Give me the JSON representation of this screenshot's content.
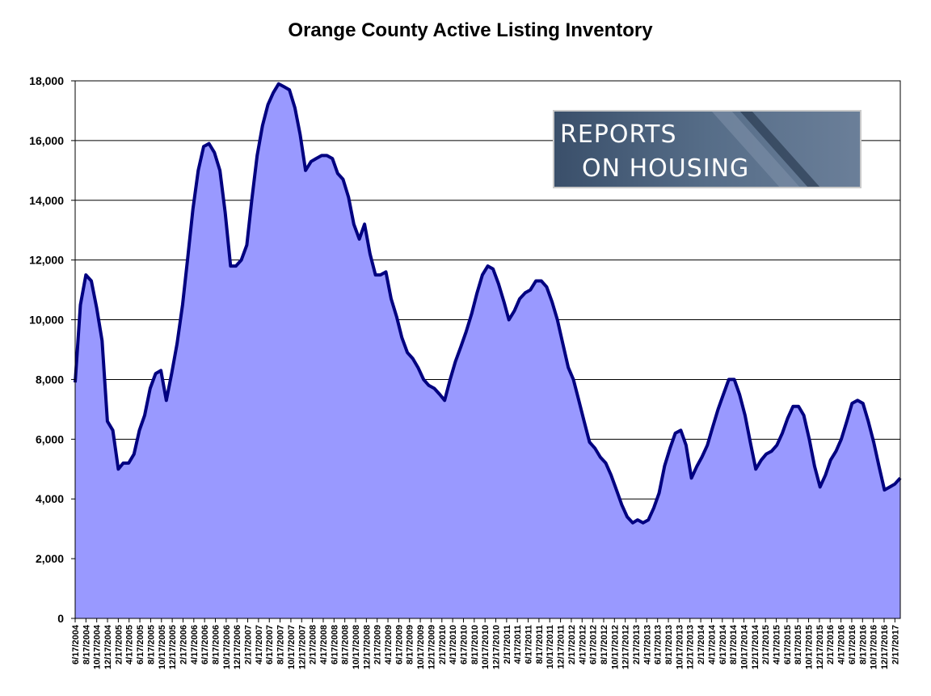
{
  "chart_data": {
    "type": "area",
    "title": "Orange County Active Listing Inventory",
    "xlabel": "",
    "ylabel": "",
    "ylim": [
      0,
      18000
    ],
    "yticks": [
      0,
      2000,
      4000,
      6000,
      8000,
      10000,
      12000,
      14000,
      16000,
      18000
    ],
    "ytick_labels": [
      "0",
      "2,000",
      "4,000",
      "6,000",
      "8,000",
      "10,000",
      "12,000",
      "14,000",
      "16,000",
      "18,000"
    ],
    "xlim": [
      "2004-06-17",
      "2017-04-17"
    ],
    "xtick_labels": [
      "6/17/2004",
      "8/17/2004",
      "10/17/2004",
      "12/17/2004",
      "2/17/2005",
      "4/17/2005",
      "6/17/2005",
      "8/17/2005",
      "10/17/2005",
      "12/17/2005",
      "2/17/2006",
      "4/17/2006",
      "6/17/2006",
      "8/17/2006",
      "10/17/2006",
      "12/17/2006",
      "2/17/2007",
      "4/17/2007",
      "6/17/2007",
      "8/17/2007",
      "10/17/2007",
      "12/17/2007",
      "2/17/2008",
      "4/17/2008",
      "6/17/2008",
      "8/17/2008",
      "10/17/2008",
      "12/17/2008",
      "2/17/2009",
      "4/17/2009",
      "6/17/2009",
      "8/17/2009",
      "10/17/2009",
      "12/17/2009",
      "2/17/2010",
      "4/17/2010",
      "6/17/2010",
      "8/17/2010",
      "10/17/2010",
      "12/17/2010",
      "2/17/2011",
      "4/17/2011",
      "6/17/2011",
      "8/17/2011",
      "10/17/2011",
      "12/17/2011",
      "2/17/2012",
      "4/17/2012",
      "6/17/2012",
      "8/17/2012",
      "10/17/2012",
      "12/17/2012",
      "2/17/2013",
      "4/17/2013",
      "6/17/2013",
      "8/17/2013",
      "10/17/2013",
      "12/17/2013",
      "2/17/2014",
      "4/17/2014",
      "6/17/2014",
      "8/17/2014",
      "10/17/2014",
      "12/17/2014",
      "2/17/2015",
      "4/17/2015",
      "6/17/2015",
      "8/17/2015",
      "10/17/2015",
      "12/17/2015",
      "2/17/2016",
      "4/17/2016",
      "6/17/2016",
      "8/17/2016",
      "10/17/2016",
      "12/17/2016",
      "2/17/2017"
    ],
    "grid": true,
    "legend": "none",
    "series": [
      {
        "color": "#9999ff",
        "line_color": "#000080",
        "points": [
          [
            "2004-06-17",
            7900
          ],
          [
            "2004-07-17",
            10500
          ],
          [
            "2004-08-17",
            11500
          ],
          [
            "2004-09-17",
            11300
          ],
          [
            "2004-10-17",
            10400
          ],
          [
            "2004-11-17",
            9300
          ],
          [
            "2004-12-17",
            6600
          ],
          [
            "2005-01-17",
            6300
          ],
          [
            "2005-02-17",
            5000
          ],
          [
            "2005-03-17",
            5200
          ],
          [
            "2005-04-17",
            5200
          ],
          [
            "2005-05-17",
            5500
          ],
          [
            "2005-06-17",
            6300
          ],
          [
            "2005-07-17",
            6800
          ],
          [
            "2005-08-17",
            7700
          ],
          [
            "2005-09-17",
            8200
          ],
          [
            "2005-10-17",
            8300
          ],
          [
            "2005-11-17",
            7300
          ],
          [
            "2005-12-17",
            8200
          ],
          [
            "2006-01-17",
            9200
          ],
          [
            "2006-02-17",
            10500
          ],
          [
            "2006-03-17",
            12000
          ],
          [
            "2006-04-17",
            13700
          ],
          [
            "2006-05-17",
            15000
          ],
          [
            "2006-06-17",
            15800
          ],
          [
            "2006-07-17",
            15900
          ],
          [
            "2006-08-17",
            15600
          ],
          [
            "2006-09-17",
            15000
          ],
          [
            "2006-10-17",
            13600
          ],
          [
            "2006-11-17",
            11800
          ],
          [
            "2006-12-17",
            11800
          ],
          [
            "2007-01-17",
            12000
          ],
          [
            "2007-02-17",
            12500
          ],
          [
            "2007-03-17",
            14000
          ],
          [
            "2007-04-17",
            15500
          ],
          [
            "2007-05-17",
            16500
          ],
          [
            "2007-06-17",
            17200
          ],
          [
            "2007-07-17",
            17600
          ],
          [
            "2007-08-17",
            17900
          ],
          [
            "2007-09-17",
            17800
          ],
          [
            "2007-10-17",
            17700
          ],
          [
            "2007-11-17",
            17100
          ],
          [
            "2007-12-17",
            16200
          ],
          [
            "2008-01-17",
            15000
          ],
          [
            "2008-02-17",
            15300
          ],
          [
            "2008-03-17",
            15400
          ],
          [
            "2008-04-17",
            15500
          ],
          [
            "2008-05-17",
            15500
          ],
          [
            "2008-06-17",
            15400
          ],
          [
            "2008-07-17",
            14900
          ],
          [
            "2008-08-17",
            14700
          ],
          [
            "2008-09-17",
            14100
          ],
          [
            "2008-10-17",
            13200
          ],
          [
            "2008-11-17",
            12700
          ],
          [
            "2008-12-17",
            13200
          ],
          [
            "2009-01-17",
            12200
          ],
          [
            "2009-02-17",
            11500
          ],
          [
            "2009-03-17",
            11500
          ],
          [
            "2009-04-17",
            11600
          ],
          [
            "2009-05-17",
            10700
          ],
          [
            "2009-06-17",
            10100
          ],
          [
            "2009-07-17",
            9400
          ],
          [
            "2009-08-17",
            8900
          ],
          [
            "2009-09-17",
            8700
          ],
          [
            "2009-10-17",
            8400
          ],
          [
            "2009-11-17",
            8000
          ],
          [
            "2009-12-17",
            7800
          ],
          [
            "2010-01-17",
            7700
          ],
          [
            "2010-02-17",
            7500
          ],
          [
            "2010-03-17",
            7300
          ],
          [
            "2010-04-17",
            8000
          ],
          [
            "2010-05-17",
            8600
          ],
          [
            "2010-06-17",
            9100
          ],
          [
            "2010-07-17",
            9600
          ],
          [
            "2010-08-17",
            10200
          ],
          [
            "2010-09-17",
            10900
          ],
          [
            "2010-10-17",
            11500
          ],
          [
            "2010-11-17",
            11800
          ],
          [
            "2010-12-17",
            11700
          ],
          [
            "2011-01-17",
            11200
          ],
          [
            "2011-02-17",
            10600
          ],
          [
            "2011-03-17",
            10000
          ],
          [
            "2011-04-17",
            10300
          ],
          [
            "2011-05-17",
            10700
          ],
          [
            "2011-06-17",
            10900
          ],
          [
            "2011-07-17",
            11000
          ],
          [
            "2011-08-17",
            11300
          ],
          [
            "2011-09-17",
            11300
          ],
          [
            "2011-10-17",
            11100
          ],
          [
            "2011-11-17",
            10600
          ],
          [
            "2011-12-17",
            10000
          ],
          [
            "2012-01-17",
            9200
          ],
          [
            "2012-02-17",
            8400
          ],
          [
            "2012-03-17",
            8000
          ],
          [
            "2012-04-17",
            7300
          ],
          [
            "2012-05-17",
            6600
          ],
          [
            "2012-06-17",
            5900
          ],
          [
            "2012-07-17",
            5700
          ],
          [
            "2012-08-17",
            5400
          ],
          [
            "2012-09-17",
            5200
          ],
          [
            "2012-10-17",
            4800
          ],
          [
            "2012-11-17",
            4300
          ],
          [
            "2012-12-17",
            3800
          ],
          [
            "2013-01-17",
            3400
          ],
          [
            "2013-02-17",
            3200
          ],
          [
            "2013-03-17",
            3300
          ],
          [
            "2013-04-17",
            3200
          ],
          [
            "2013-05-17",
            3300
          ],
          [
            "2013-06-17",
            3700
          ],
          [
            "2013-07-17",
            4200
          ],
          [
            "2013-08-17",
            5100
          ],
          [
            "2013-09-17",
            5700
          ],
          [
            "2013-10-17",
            6200
          ],
          [
            "2013-11-17",
            6300
          ],
          [
            "2013-12-17",
            5800
          ],
          [
            "2014-01-17",
            4700
          ],
          [
            "2014-02-17",
            5100
          ],
          [
            "2014-03-17",
            5400
          ],
          [
            "2014-04-17",
            5800
          ],
          [
            "2014-05-17",
            6400
          ],
          [
            "2014-06-17",
            7000
          ],
          [
            "2014-07-17",
            7500
          ],
          [
            "2014-08-17",
            8000
          ],
          [
            "2014-09-17",
            8000
          ],
          [
            "2014-10-17",
            7500
          ],
          [
            "2014-11-17",
            6800
          ],
          [
            "2014-12-17",
            5900
          ],
          [
            "2015-01-17",
            5000
          ],
          [
            "2015-02-17",
            5300
          ],
          [
            "2015-03-17",
            5500
          ],
          [
            "2015-04-17",
            5600
          ],
          [
            "2015-05-17",
            5800
          ],
          [
            "2015-06-17",
            6200
          ],
          [
            "2015-07-17",
            6700
          ],
          [
            "2015-08-17",
            7100
          ],
          [
            "2015-09-17",
            7100
          ],
          [
            "2015-10-17",
            6800
          ],
          [
            "2015-11-17",
            6000
          ],
          [
            "2015-12-17",
            5100
          ],
          [
            "2016-01-17",
            4400
          ],
          [
            "2016-02-17",
            4800
          ],
          [
            "2016-03-17",
            5300
          ],
          [
            "2016-04-17",
            5600
          ],
          [
            "2016-05-17",
            6000
          ],
          [
            "2016-06-17",
            6600
          ],
          [
            "2016-07-17",
            7200
          ],
          [
            "2016-08-17",
            7300
          ],
          [
            "2016-09-17",
            7200
          ],
          [
            "2016-10-17",
            6600
          ],
          [
            "2016-11-17",
            5900
          ],
          [
            "2016-12-17",
            5100
          ],
          [
            "2017-01-17",
            4300
          ],
          [
            "2017-02-17",
            4400
          ],
          [
            "2017-03-17",
            4500
          ],
          [
            "2017-04-17",
            4700
          ]
        ]
      }
    ]
  },
  "logo": {
    "line1": "REPORTS",
    "line2": "ON HOUSING"
  }
}
